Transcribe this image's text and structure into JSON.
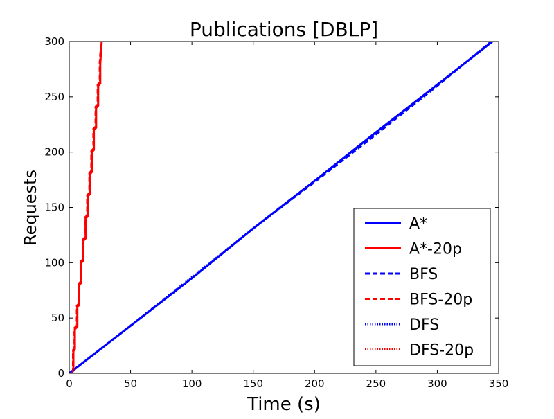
{
  "chart_data": {
    "type": "line",
    "title": "Publications [DBLP]",
    "xlabel": "Time (s)",
    "ylabel": "Requests",
    "xlim": [
      0,
      350
    ],
    "ylim": [
      0,
      300
    ],
    "xticks": [
      0,
      50,
      100,
      150,
      200,
      250,
      300,
      350
    ],
    "yticks": [
      0,
      50,
      100,
      150,
      200,
      250,
      300
    ],
    "grid": false,
    "legend_position": "bottom-right",
    "series": [
      {
        "name": "A*",
        "color": "#0000ff",
        "line_style": "solid",
        "x": [
          0,
          50,
          100,
          150,
          200,
          250,
          300,
          345
        ],
        "y": [
          0,
          43,
          86,
          131,
          174,
          218,
          261,
          300
        ]
      },
      {
        "name": "A*-20p",
        "color": "#ff0000",
        "line_style": "solid",
        "x": [
          2.2,
          3.4,
          3.4,
          4.6,
          4.6,
          6.6,
          6.6,
          8.2,
          8.2,
          9.9,
          9.9,
          11.6,
          11.6,
          13.4,
          13.4,
          15.1,
          15.1,
          16.8,
          16.8,
          18.4,
          18.4,
          20.1,
          20.1,
          21.9,
          21.9,
          23.6,
          23.6,
          25.3,
          25.3,
          26.5
        ],
        "y": [
          0,
          3,
          20,
          22,
          40,
          42,
          60,
          62,
          80,
          82,
          100,
          102,
          120,
          122,
          140,
          142,
          160,
          162,
          180,
          182,
          200,
          202,
          220,
          222,
          240,
          242,
          260,
          262,
          280,
          300
        ]
      },
      {
        "name": "BFS",
        "color": "#0000ff",
        "line_style": "dashed",
        "x": [
          0,
          50,
          100,
          150,
          200,
          250,
          300,
          344
        ],
        "y": [
          0,
          43,
          86,
          131,
          173,
          216,
          260,
          300
        ]
      },
      {
        "name": "BFS-20p",
        "color": "#ff0000",
        "line_style": "dashed",
        "x": [
          1.8,
          3.1,
          3.1,
          4.3,
          4.3,
          6.2,
          6.2,
          7.8,
          7.8,
          9.5,
          9.5,
          11.2,
          11.2,
          13.0,
          13.0,
          14.7,
          14.7,
          16.4,
          16.4,
          18.0,
          18.0,
          19.7,
          19.7,
          21.5,
          21.5,
          23.2,
          23.2,
          24.9,
          24.9,
          26.1
        ],
        "y": [
          0,
          3,
          21,
          23,
          41,
          43,
          61,
          63,
          81,
          83,
          101,
          103,
          121,
          123,
          141,
          143,
          161,
          163,
          181,
          183,
          201,
          203,
          221,
          223,
          241,
          243,
          261,
          263,
          281,
          300
        ]
      },
      {
        "name": "DFS",
        "color": "#0000ff",
        "line_style": "dotted",
        "x": [
          0,
          50,
          100,
          150,
          200,
          250,
          300,
          345
        ],
        "y": [
          0,
          43,
          87,
          131,
          174,
          217,
          261,
          300
        ]
      },
      {
        "name": "DFS-20p",
        "color": "#ff0000",
        "line_style": "dotted",
        "x": [
          2.0,
          3.2,
          3.2,
          4.4,
          4.4,
          6.4,
          6.4,
          8.0,
          8.0,
          9.7,
          9.7,
          11.4,
          11.4,
          13.2,
          13.2,
          14.9,
          14.9,
          16.6,
          16.6,
          18.2,
          18.2,
          19.9,
          19.9,
          21.7,
          21.7,
          23.4,
          23.4,
          25.1,
          25.1,
          26.3
        ],
        "y": [
          0,
          3,
          20,
          22,
          40,
          42,
          60,
          62,
          80,
          82,
          100,
          102,
          120,
          122,
          140,
          142,
          160,
          162,
          180,
          182,
          200,
          202,
          220,
          222,
          240,
          242,
          260,
          262,
          280,
          300
        ]
      }
    ]
  }
}
